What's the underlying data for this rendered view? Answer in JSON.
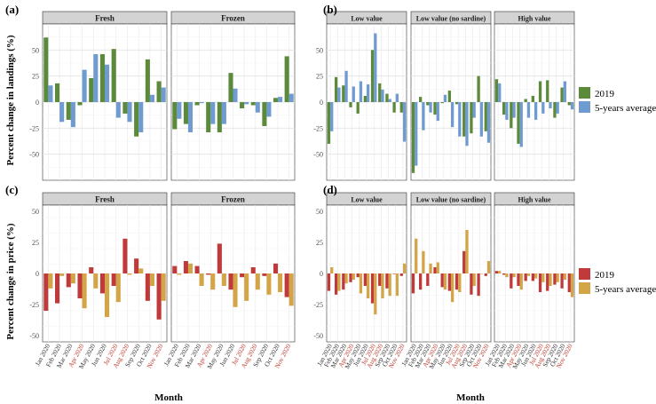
{
  "months": [
    "Jan 2020",
    "Feb 2020",
    "Mar 2020",
    "Apr 2020",
    "May 2020",
    "Jun 2020",
    "Jul 2020",
    "Aug 2020",
    "Sep 2020",
    "Oct 2020",
    "Nov 2020"
  ],
  "highlight_months": [
    "Apr 2020",
    "Jul 2020",
    "Aug 2020",
    "Nov 2020"
  ],
  "colors": {
    "landings_2019": "#5a8a3a",
    "landings_5yr": "#6f9bd1",
    "price_2019": "#c0393b",
    "price_5yr": "#d4a547",
    "highlight_tick": "#c0392b",
    "strip_bg": "#d3d3d3",
    "grid": "#ebebeb"
  },
  "labels": {
    "ylabel_landings": "Percent change in landings (%)",
    "ylabel_price": "Percent change in price (%)",
    "xlabel": "Month"
  },
  "legends": {
    "landings": [
      "2019",
      "5-years average"
    ],
    "price": [
      "2019",
      "5-years average"
    ]
  },
  "chart_data": [
    {
      "id": "a",
      "panel_label": "(a)",
      "type": "bar",
      "ylabel": "Percent change in landings (%)",
      "ylim": [
        -75,
        75
      ],
      "yticks": [
        -50,
        -25,
        0,
        25,
        50
      ],
      "facets": [
        {
          "name": "Fresh",
          "series": [
            {
              "name": "2019",
              "values": [
                62,
                18,
                -17,
                -3,
                23,
                46,
                51,
                -11,
                -33,
                41,
                20
              ]
            },
            {
              "name": "5-years average",
              "values": [
                16,
                -19,
                -24,
                31,
                46,
                36,
                -15,
                -19,
                -29,
                7,
                14
              ]
            }
          ]
        },
        {
          "name": "Frozen",
          "series": [
            {
              "name": "2019",
              "values": [
                -26,
                -21,
                -3,
                -29,
                -29,
                28,
                -6,
                -3,
                -23,
                4,
                44
              ]
            },
            {
              "name": "5-years average",
              "values": [
                -16,
                -29,
                -1,
                -21,
                -21,
                13,
                -2,
                -10,
                -14,
                5,
                8
              ]
            }
          ]
        }
      ]
    },
    {
      "id": "b",
      "panel_label": "(b)",
      "type": "bar",
      "ylabel": "",
      "ylim": [
        -75,
        75
      ],
      "yticks": [
        -50,
        -25,
        0,
        25,
        50
      ],
      "facets": [
        {
          "name": "Low value",
          "series": [
            {
              "name": "2019",
              "values": [
                -40,
                24,
                16,
                -5,
                -11,
                6,
                50,
                18,
                8,
                -10,
                -10
              ]
            },
            {
              "name": "5-years average",
              "values": [
                -28,
                14,
                30,
                15,
                20,
                17,
                66,
                12,
                3,
                8,
                -38
              ]
            }
          ]
        },
        {
          "name": "Low value (no sardine)",
          "series": [
            {
              "name": "2019",
              "values": [
                -68,
                5,
                -3,
                -12,
                -1,
                11,
                -2,
                -33,
                -30,
                25,
                -28
              ]
            },
            {
              "name": "5-years average",
              "values": [
                -61,
                -27,
                -10,
                -18,
                7,
                -24,
                -33,
                -42,
                -15,
                -33,
                -39
              ]
            }
          ]
        },
        {
          "name": "High value",
          "series": [
            {
              "name": "2019",
              "values": [
                22,
                -12,
                -25,
                -40,
                3,
                6,
                20,
                21,
                -15,
                14,
                -3
              ]
            },
            {
              "name": "5-years average",
              "values": [
                18,
                -17,
                -15,
                -43,
                -15,
                -17,
                -11,
                -6,
                -11,
                20,
                -7
              ]
            }
          ]
        }
      ]
    },
    {
      "id": "c",
      "panel_label": "(c)",
      "type": "bar",
      "ylabel": "Percent change in price (%)",
      "ylim": [
        -55,
        55
      ],
      "yticks": [
        -50,
        -25,
        0,
        25,
        50
      ],
      "facets": [
        {
          "name": "Fresh",
          "series": [
            {
              "name": "2019",
              "values": [
                -30,
                -24,
                -11,
                -20,
                5,
                -16,
                -10,
                28,
                12,
                -22,
                -37
              ]
            },
            {
              "name": "5-years average",
              "values": [
                -12,
                -2,
                -8,
                -28,
                -12,
                -35,
                -23,
                -1,
                4,
                -10,
                -22
              ]
            }
          ]
        },
        {
          "name": "Frozen",
          "series": [
            {
              "name": "2019",
              "values": [
                6,
                10,
                6,
                -1,
                24,
                -13,
                -3,
                5,
                -2,
                8,
                -19
              ]
            },
            {
              "name": "5-years average",
              "values": [
                -1,
                8,
                -10,
                -13,
                -10,
                -27,
                -22,
                -13,
                -17,
                -15,
                -26
              ]
            }
          ]
        }
      ]
    },
    {
      "id": "d",
      "panel_label": "(d)",
      "type": "bar",
      "ylabel": "",
      "ylim": [
        -55,
        55
      ],
      "yticks": [
        -50,
        -25,
        0,
        25,
        50
      ],
      "facets": [
        {
          "name": "Low value",
          "series": [
            {
              "name": "2019",
              "values": [
                -14,
                -17,
                -13,
                -7,
                -3,
                -10,
                -24,
                -10,
                -12,
                0,
                -2
              ]
            },
            {
              "name": "5-years average",
              "values": [
                5,
                -14,
                -8,
                -5,
                -16,
                -20,
                -33,
                -20,
                -18,
                -18,
                8
              ]
            }
          ]
        },
        {
          "name": "Low value (no sardine)",
          "series": [
            {
              "name": "2019",
              "values": [
                -16,
                -13,
                -10,
                5,
                -11,
                -14,
                -13,
                18,
                -17,
                -18,
                -2
              ]
            },
            {
              "name": "5-years average",
              "values": [
                28,
                18,
                8,
                9,
                -13,
                -23,
                -15,
                35,
                -10,
                0,
                10
              ]
            }
          ]
        },
        {
          "name": "High value",
          "series": [
            {
              "name": "2019",
              "values": [
                2,
                -1,
                -12,
                -10,
                -6,
                -6,
                -15,
                -14,
                -9,
                -12,
                -15
              ]
            },
            {
              "name": "5-years average",
              "values": [
                2,
                -3,
                -3,
                -13,
                -2,
                -4,
                -7,
                -10,
                -7,
                -5,
                -19
              ]
            }
          ]
        }
      ]
    }
  ]
}
